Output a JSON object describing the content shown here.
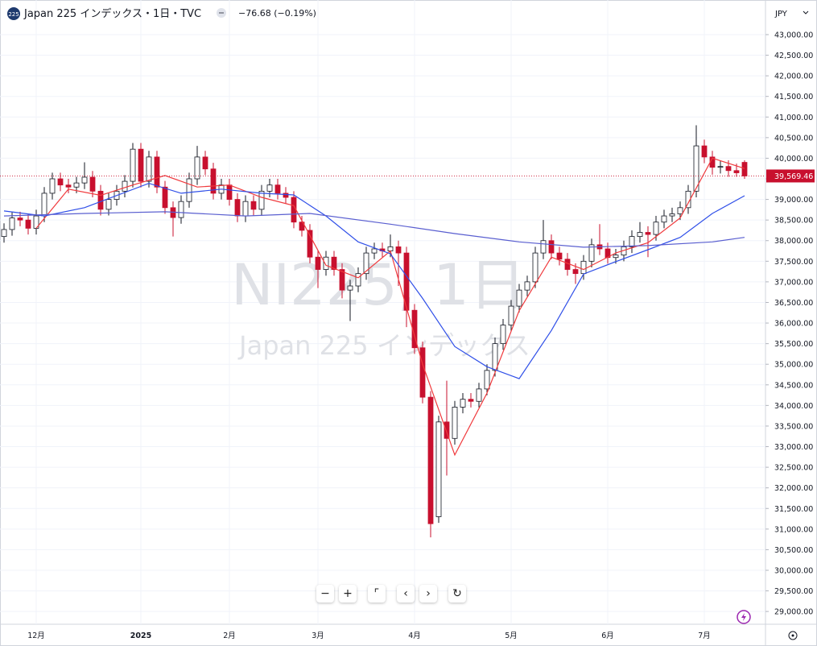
{
  "chart_data": {
    "type": "candlestick",
    "badge": "225",
    "title": "Japan 225 インデックス・1日・TVC",
    "change": "−76.68 (−0.19%)",
    "watermark": "NI225, 1日",
    "watermark_subtitle": "Japan 225 インデックス",
    "currency": "JPY",
    "last_price_label": {
      "value": 39569.46,
      "label": "39,569.46"
    },
    "up_color": "#ffffff",
    "down_color": "#c8102e",
    "grid": true,
    "xlim": [
      -0.5,
      94.6
    ],
    "ylim": [
      28690,
      43840
    ],
    "xticks": [
      {
        "value": 4,
        "label": "12月"
      },
      {
        "value": 17,
        "label": "2025"
      },
      {
        "value": 28,
        "label": "2月"
      },
      {
        "value": 39,
        "label": "3月"
      },
      {
        "value": 51,
        "label": "4月"
      },
      {
        "value": 63,
        "label": "5月"
      },
      {
        "value": 75,
        "label": "6月"
      },
      {
        "value": 87,
        "label": "7月"
      }
    ],
    "yticks": [
      {
        "value": 29000,
        "label": "29,000.00"
      },
      {
        "value": 29500,
        "label": "29,500.00"
      },
      {
        "value": 30000,
        "label": "30,000.00"
      },
      {
        "value": 30500,
        "label": "30,500.00"
      },
      {
        "value": 31000,
        "label": "31,000.00"
      },
      {
        "value": 31500,
        "label": "31,500.00"
      },
      {
        "value": 32000,
        "label": "32,000.00"
      },
      {
        "value": 32500,
        "label": "32,500.00"
      },
      {
        "value": 33000,
        "label": "33,000.00"
      },
      {
        "value": 33500,
        "label": "33,500.00"
      },
      {
        "value": 34000,
        "label": "34,000.00"
      },
      {
        "value": 34500,
        "label": "34,500.00"
      },
      {
        "value": 35000,
        "label": "35,000.00"
      },
      {
        "value": 35500,
        "label": "35,500.00"
      },
      {
        "value": 36000,
        "label": "36,000.00"
      },
      {
        "value": 36500,
        "label": "36,500.00"
      },
      {
        "value": 37000,
        "label": "37,000.00"
      },
      {
        "value": 37500,
        "label": "37,500.00"
      },
      {
        "value": 38000,
        "label": "38,000.00"
      },
      {
        "value": 38500,
        "label": "38,500.00"
      },
      {
        "value": 39000,
        "label": "39,000.00"
      },
      {
        "value": 39500,
        "label": "39,500.00"
      },
      {
        "value": 40000,
        "label": "40,000.00"
      },
      {
        "value": 40500,
        "label": "40,500.00"
      },
      {
        "value": 41000,
        "label": "41,000.00"
      },
      {
        "value": 41500,
        "label": "41,500.00"
      },
      {
        "value": 42000,
        "label": "42,000.00"
      },
      {
        "value": 42500,
        "label": "42,500.00"
      },
      {
        "value": 43000,
        "label": "43,000.00"
      }
    ],
    "open": [
      38100,
      38270,
      38550,
      38500,
      38300,
      38600,
      39150,
      39500,
      39350,
      39300,
      39400,
      39540,
      39200,
      38760,
      39000,
      39200,
      39440,
      40220,
      39440,
      40030,
      39300,
      38800,
      38560,
      38950,
      39500,
      40030,
      39740,
      39150,
      39350,
      39000,
      38600,
      38950,
      38760,
      39200,
      39350,
      39150,
      39050,
      38450,
      38250,
      37600,
      37300,
      37600,
      37300,
      36800,
      36900,
      37200,
      37700,
      37800,
      37750,
      37850,
      37700,
      36310,
      35400,
      34200,
      31300,
      33600,
      33200,
      33960,
      34150,
      34100,
      34400,
      34850,
      35500,
      35950,
      36410,
      36800,
      37000,
      37700,
      38000,
      37700,
      37550,
      37300,
      37200,
      37500,
      37900,
      37800,
      37590,
      37650,
      37850,
      38100,
      38200,
      38150,
      38450,
      38600,
      38650,
      38800,
      39200,
      40300,
      40030,
      39780,
      39800,
      39700,
      39900
    ],
    "high": [
      38420,
      38700,
      38700,
      38650,
      38750,
      39300,
      39650,
      39650,
      39500,
      39550,
      39900,
      39690,
      39350,
      39150,
      39350,
      39590,
      40370,
      40370,
      40180,
      40180,
      39450,
      38950,
      39100,
      39650,
      40300,
      40180,
      39890,
      39500,
      39500,
      39150,
      39100,
      39100,
      39350,
      39500,
      39500,
      39300,
      39200,
      38600,
      38400,
      37750,
      37750,
      37750,
      37450,
      37050,
      37350,
      37850,
      37950,
      37950,
      38150,
      38000,
      37850,
      36460,
      35550,
      34350,
      33750,
      34600,
      34110,
      34300,
      34300,
      34550,
      35000,
      35650,
      36100,
      36560,
      36950,
      37150,
      37850,
      38500,
      38150,
      37850,
      37700,
      37450,
      37650,
      38050,
      38400,
      37950,
      37800,
      38000,
      38250,
      38450,
      38350,
      38600,
      38750,
      38800,
      38950,
      39350,
      40800,
      40450,
      40180,
      39950,
      39950,
      39870,
      39950
    ],
    "low": [
      37950,
      38120,
      38350,
      38150,
      38150,
      38450,
      39000,
      39200,
      39150,
      39150,
      39250,
      39050,
      38610,
      38610,
      38850,
      39050,
      39290,
      39290,
      39290,
      39150,
      38650,
      38100,
      38410,
      38800,
      39350,
      39590,
      39000,
      39000,
      38850,
      38450,
      38450,
      38610,
      38610,
      39050,
      39000,
      38900,
      38300,
      38100,
      37450,
      36850,
      37150,
      37150,
      36600,
      36050,
      36750,
      37050,
      37550,
      37600,
      37600,
      36900,
      35900,
      35250,
      34050,
      30800,
      31150,
      32300,
      33050,
      33810,
      33950,
      33950,
      34250,
      34700,
      35350,
      35800,
      36260,
      36650,
      36850,
      37550,
      37550,
      37400,
      37150,
      36950,
      37050,
      37350,
      37650,
      37440,
      37440,
      37500,
      37700,
      37950,
      37600,
      38000,
      38300,
      38450,
      38500,
      38650,
      39050,
      39880,
      39600,
      39630,
      39550,
      39550,
      39500
    ],
    "close": [
      38270,
      38550,
      38500,
      38300,
      38600,
      39150,
      39500,
      39350,
      39300,
      39400,
      39540,
      39200,
      38760,
      39000,
      39200,
      39440,
      40220,
      39440,
      40030,
      39300,
      38800,
      38560,
      38950,
      39500,
      40030,
      39740,
      39150,
      39350,
      39000,
      38600,
      38950,
      38760,
      39200,
      39350,
      39150,
      39050,
      38450,
      38250,
      37600,
      37300,
      37600,
      37300,
      36800,
      36900,
      37200,
      37700,
      37800,
      37750,
      37850,
      37700,
      36310,
      35400,
      34200,
      31130,
      33600,
      33200,
      33960,
      34150,
      34100,
      34400,
      34850,
      35500,
      35950,
      36410,
      36800,
      37000,
      37700,
      38000,
      37700,
      37550,
      37300,
      37200,
      37500,
      37900,
      37800,
      37590,
      37650,
      37850,
      38100,
      38200,
      38150,
      38450,
      38600,
      38650,
      38800,
      39200,
      40300,
      40030,
      39780,
      39800,
      39700,
      39646.14,
      39569.46
    ],
    "moving_averages": [
      {
        "color": "#f0393c",
        "x": [
          4,
          8,
          12,
          16,
          20,
          24,
          28,
          32,
          36,
          40,
          44,
          48,
          52,
          56,
          60,
          64,
          68,
          72,
          76,
          80,
          84,
          88,
          92
        ],
        "values": [
          38300,
          39250,
          39100,
          39350,
          39580,
          39300,
          39350,
          39050,
          38850,
          37400,
          37100,
          37750,
          35000,
          32800,
          34300,
          36300,
          37600,
          37300,
          37700,
          37950,
          38550,
          40000,
          39750
        ]
      },
      {
        "color": "#2f4fe8",
        "x": [
          0,
          5,
          10,
          18,
          22,
          27,
          32,
          36,
          40,
          44,
          48,
          52,
          56,
          60,
          64,
          68,
          72,
          76,
          80,
          84,
          88,
          92
        ],
        "values": [
          38720,
          38600,
          38800,
          39390,
          39150,
          39250,
          39150,
          39110,
          38600,
          37970,
          37680,
          36600,
          35430,
          34940,
          34650,
          35820,
          37190,
          37490,
          37780,
          38080,
          38660,
          39090
        ]
      },
      {
        "color": "#5a5fd0",
        "x": [
          0,
          10,
          20,
          30,
          38,
          48,
          56,
          64,
          72,
          80,
          88,
          92
        ],
        "values": [
          38600,
          38660,
          38700,
          38600,
          38660,
          38400,
          38170,
          37970,
          37840,
          37880,
          37970,
          38080
        ]
      }
    ]
  }
}
